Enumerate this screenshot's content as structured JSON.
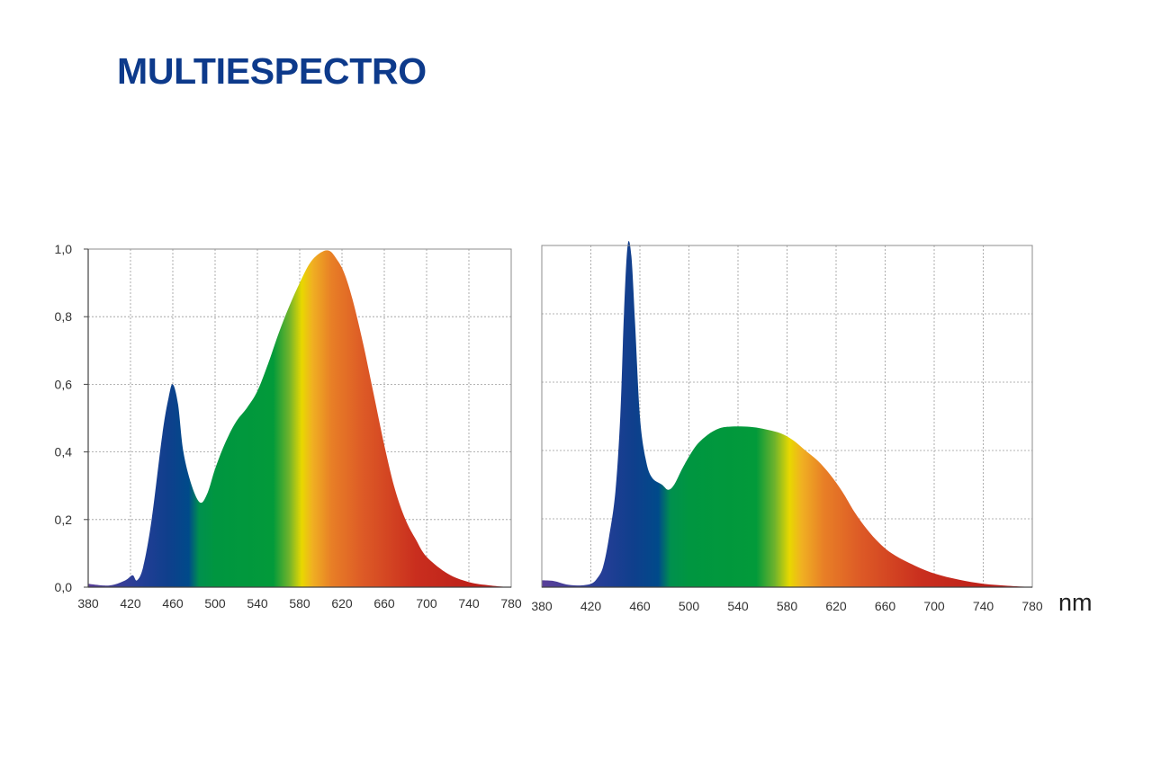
{
  "page": {
    "title": "MULTIESPECTRO"
  },
  "chart_data": [
    {
      "type": "area",
      "x_unit": "nm",
      "xlim": [
        380,
        780
      ],
      "ylim": [
        0,
        1.0
      ],
      "xticks": [
        "380",
        "420",
        "460",
        "500",
        "540",
        "580",
        "620",
        "660",
        "700",
        "740",
        "780"
      ],
      "yticks": [
        "0,0",
        "0,2",
        "0,4",
        "0,6",
        "0,8",
        "1,0"
      ],
      "grid": true,
      "x": [
        380,
        400,
        415,
        422,
        426,
        432,
        440,
        450,
        456,
        460,
        465,
        470,
        478,
        486,
        493,
        500,
        510,
        520,
        530,
        540,
        550,
        560,
        570,
        580,
        590,
        600,
        608,
        615,
        622,
        630,
        640,
        650,
        660,
        670,
        680,
        690,
        700,
        720,
        740,
        760,
        780
      ],
      "y": [
        0.01,
        0.005,
        0.02,
        0.035,
        0.02,
        0.06,
        0.2,
        0.45,
        0.56,
        0.6,
        0.54,
        0.4,
        0.3,
        0.25,
        0.28,
        0.35,
        0.43,
        0.49,
        0.53,
        0.58,
        0.66,
        0.75,
        0.83,
        0.9,
        0.96,
        0.99,
        0.995,
        0.97,
        0.93,
        0.85,
        0.72,
        0.57,
        0.42,
        0.29,
        0.2,
        0.14,
        0.09,
        0.04,
        0.015,
        0.005,
        0
      ]
    },
    {
      "type": "area",
      "x_unit": "nm",
      "unit_label": "nm",
      "xlim": [
        380,
        780
      ],
      "ylim": [
        0,
        1.0
      ],
      "xticks": [
        "380",
        "420",
        "460",
        "500",
        "540",
        "580",
        "620",
        "660",
        "700",
        "740",
        "780"
      ],
      "yticks": [
        "0,0",
        "0,2",
        "0,4",
        "0,6",
        "0,8",
        "1,0"
      ],
      "grid": true,
      "x": [
        380,
        390,
        400,
        410,
        420,
        425,
        430,
        435,
        440,
        444,
        447,
        450,
        453,
        456,
        460,
        465,
        470,
        478,
        483,
        488,
        495,
        505,
        515,
        525,
        535,
        545,
        555,
        565,
        575,
        585,
        595,
        605,
        615,
        625,
        635,
        645,
        655,
        665,
        680,
        700,
        720,
        740,
        760,
        780
      ],
      "y": [
        0.02,
        0.018,
        0.008,
        0.005,
        0.01,
        0.025,
        0.06,
        0.15,
        0.28,
        0.5,
        0.8,
        1.0,
        0.97,
        0.78,
        0.5,
        0.37,
        0.32,
        0.3,
        0.285,
        0.3,
        0.35,
        0.41,
        0.445,
        0.465,
        0.47,
        0.47,
        0.467,
        0.46,
        0.45,
        0.43,
        0.4,
        0.37,
        0.33,
        0.28,
        0.22,
        0.17,
        0.13,
        0.1,
        0.07,
        0.04,
        0.022,
        0.01,
        0.004,
        0
      ]
    }
  ]
}
